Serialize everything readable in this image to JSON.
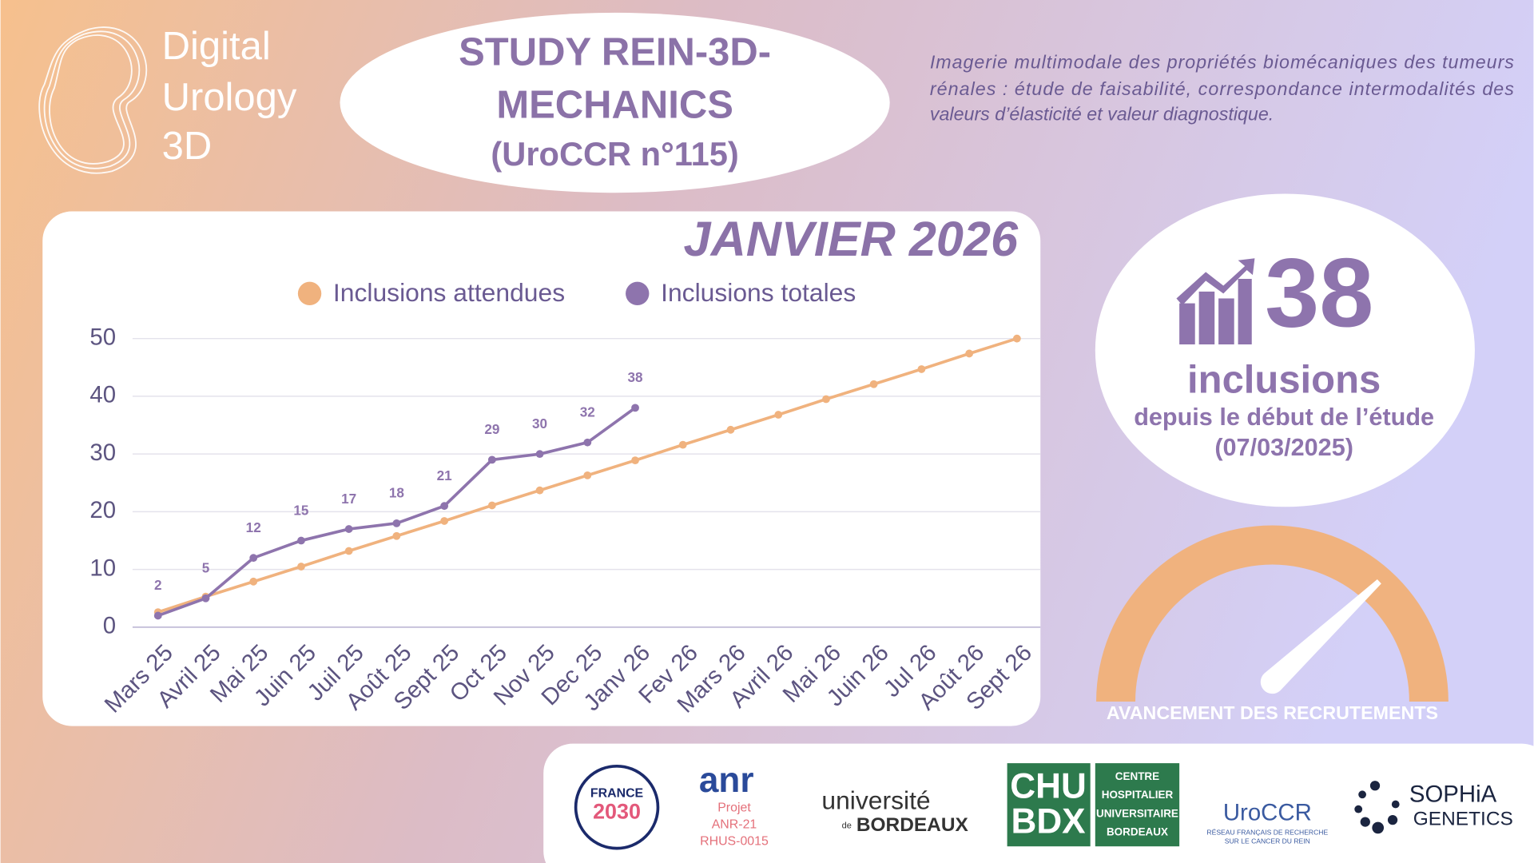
{
  "header": {
    "brand": [
      "Digital",
      "Urology",
      "3D"
    ],
    "title": [
      "STUDY REIN-3D-",
      "MECHANICS",
      "(UroCCR n°115)"
    ],
    "description": [
      "Imagerie multimodale des propriétés biomécaniques des tumeurs",
      "rénales : étude de faisabilité, correspondance intermodalités des",
      "valeurs d’élasticité et valeur diagnostique."
    ]
  },
  "chart_data": {
    "type": "line",
    "title": "JANVIER 2026",
    "categories": [
      "Mars 25",
      "Avril 25",
      "Mai 25",
      "Juin 25",
      "Juil 25",
      "Août 25",
      "Sept 25",
      "Oct 25",
      "Nov 25",
      "Dec 25",
      "Janv 26",
      "Fev 26",
      "Mars 26",
      "Avril 26",
      "Mai 26",
      "Juin 26",
      "Jul 26",
      "Août 26",
      "Sept 26"
    ],
    "series": [
      {
        "name": "Inclusions attendues",
        "color": "#f0b27e",
        "values": [
          2.6,
          5.3,
          7.9,
          10.5,
          13.2,
          15.8,
          18.4,
          21.1,
          23.7,
          26.3,
          28.9,
          31.6,
          34.2,
          36.8,
          39.5,
          42.1,
          44.7,
          47.4,
          50
        ]
      },
      {
        "name": "Inclusions totales",
        "color": "#8e74ad",
        "values": [
          2,
          5,
          12,
          15,
          17,
          18,
          21,
          29,
          30,
          32,
          38,
          null,
          null,
          null,
          null,
          null,
          null,
          null,
          null
        ]
      }
    ],
    "data_labels_series": 1,
    "ylim": [
      0,
      50
    ],
    "yticks": [
      0,
      10,
      20,
      30,
      40,
      50
    ],
    "grid": true,
    "legend": "top"
  },
  "kpi": {
    "value": 38,
    "unit": "inclusions",
    "caption": "depuis le début de l’étude",
    "date": "(07/03/2025)",
    "gauge_label": "AVANCEMENT DES RECRUTEMENTS"
  },
  "logos": {
    "france": [
      "FRANCE",
      "2030"
    ],
    "anr": [
      "anr",
      "Projet",
      "ANR-21",
      "RHUS-0015"
    ],
    "ubx": [
      "université",
      "de",
      "BORDEAUX"
    ],
    "chu": [
      "CHU",
      "BDX",
      "CENTRE",
      "HOSPITALIER",
      "UNIVERSITAIRE",
      "BORDEAUX"
    ],
    "uroccr": [
      "UroCCR",
      "RÉSEAU FRANÇAIS DE RECHERCHE",
      "SUR LE CANCER DU REIN"
    ],
    "sophia": [
      "SOPHiA",
      "GENETICS"
    ]
  }
}
